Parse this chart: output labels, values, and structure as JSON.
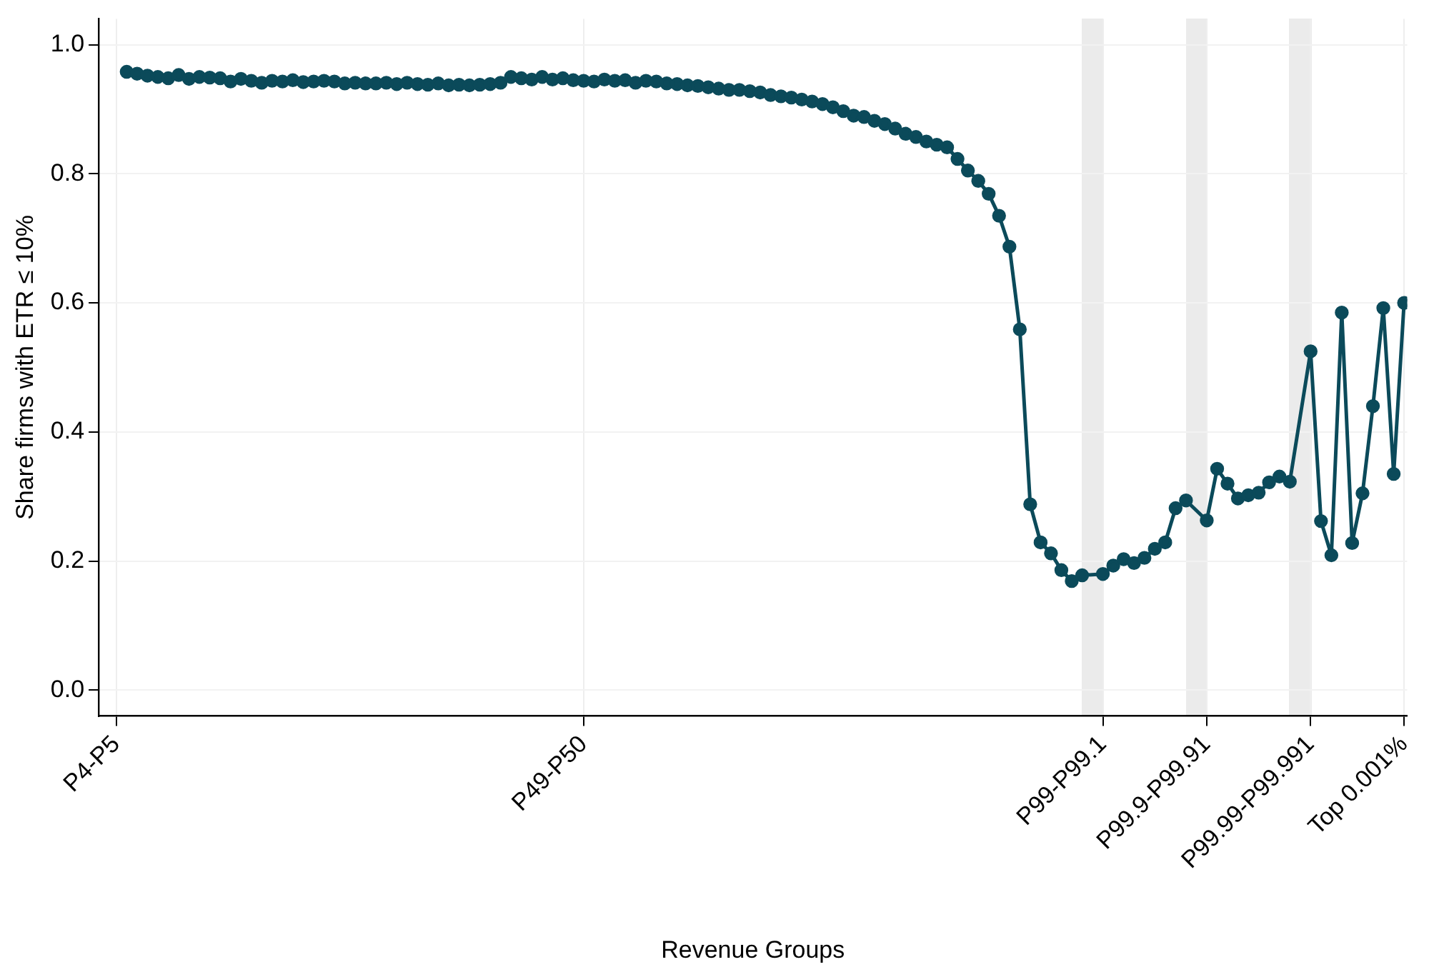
{
  "chart_data": {
    "type": "line",
    "xlabel": "Revenue Groups",
    "ylabel": "Share firms with ETR ≤ 10%",
    "categories": [
      "P4-P5",
      null,
      null,
      null,
      null,
      null,
      null,
      null,
      null,
      null,
      null,
      null,
      null,
      null,
      null,
      null,
      null,
      null,
      null,
      null,
      null,
      null,
      null,
      null,
      null,
      null,
      null,
      null,
      null,
      null,
      null,
      null,
      null,
      null,
      null,
      null,
      null,
      null,
      null,
      null,
      null,
      null,
      null,
      null,
      null,
      "P49-P50",
      null,
      null,
      null,
      null,
      null,
      null,
      null,
      null,
      null,
      null,
      null,
      null,
      null,
      null,
      null,
      null,
      null,
      null,
      null,
      null,
      null,
      null,
      null,
      null,
      null,
      null,
      null,
      null,
      null,
      null,
      null,
      null,
      null,
      null,
      null,
      null,
      null,
      null,
      null,
      null,
      null,
      null,
      null,
      null,
      null,
      null,
      null,
      null,
      null,
      "P99-P99.1",
      null,
      null,
      null,
      null,
      null,
      null,
      null,
      null,
      null,
      "P99.9-P99.91",
      null,
      null,
      null,
      null,
      null,
      null,
      null,
      null,
      null,
      "P99.99-P99.991",
      null,
      null,
      null,
      null,
      null,
      null,
      null,
      null,
      "Top 0.001%"
    ],
    "series": [
      {
        "color": "#0b4a5a",
        "values": [
          null,
          0.958,
          0.955,
          0.952,
          0.95,
          0.948,
          0.953,
          0.947,
          0.95,
          0.949,
          0.948,
          0.943,
          0.947,
          0.944,
          0.941,
          0.944,
          0.943,
          0.945,
          0.942,
          0.943,
          0.944,
          0.943,
          0.94,
          0.941,
          0.94,
          0.94,
          0.941,
          0.939,
          0.941,
          0.939,
          0.938,
          0.94,
          0.937,
          0.938,
          0.937,
          0.938,
          0.939,
          0.941,
          0.95,
          0.948,
          0.946,
          0.95,
          0.946,
          0.948,
          0.945,
          0.944,
          0.943,
          0.946,
          0.944,
          0.945,
          0.941,
          0.944,
          0.943,
          0.94,
          0.939,
          0.937,
          0.936,
          0.934,
          0.932,
          0.93,
          0.93,
          0.928,
          0.926,
          0.922,
          0.92,
          0.918,
          0.915,
          0.912,
          0.908,
          0.903,
          0.897,
          0.89,
          0.888,
          0.882,
          0.877,
          0.87,
          0.862,
          0.857,
          0.85,
          0.845,
          0.841,
          0.823,
          0.805,
          0.789,
          0.769,
          0.735,
          0.687,
          0.559,
          0.288,
          0.229,
          0.212,
          0.186,
          0.169,
          0.178,
          null,
          0.18,
          0.193,
          0.203,
          0.197,
          0.205,
          0.219,
          0.229,
          0.282,
          0.294,
          null,
          0.263,
          0.343,
          0.32,
          0.297,
          0.302,
          0.306,
          0.322,
          0.331,
          0.323,
          null,
          0.525,
          0.262,
          0.209,
          0.585,
          0.228,
          0.305,
          0.44,
          0.592,
          0.335,
          0.6
        ]
      }
    ],
    "ylim": [
      -0.04,
      1.04
    ],
    "yticks": [
      {
        "value": 0,
        "label": "0.0"
      },
      {
        "value": 0.2,
        "label": "0.2"
      },
      {
        "value": 0.4,
        "label": "0.4"
      },
      {
        "value": 0.6,
        "label": "0.6"
      },
      {
        "value": 0.8,
        "label": "0.8"
      },
      {
        "value": 1,
        "label": "1.0"
      }
    ],
    "grid": true,
    "legend": false,
    "marker": "circle",
    "line_style": "solid"
  }
}
